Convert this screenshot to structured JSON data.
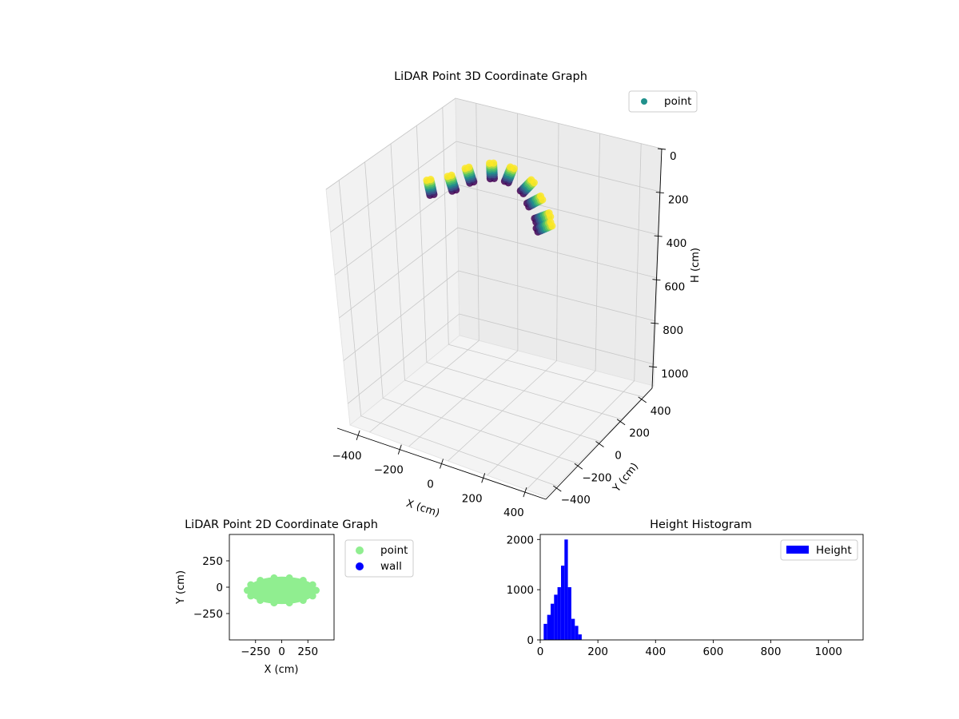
{
  "chart_data": [
    {
      "type": "scatter",
      "title": "LiDAR Point 3D Coordinate Graph",
      "xlabel": "X (cm)",
      "ylabel": "Y (cm)",
      "zlabel": "H (cm)",
      "xlim": [
        -500,
        500
      ],
      "ylim": [
        -500,
        500
      ],
      "zlim": [
        1100,
        0
      ],
      "xticks": [
        "−400",
        "−200",
        "0",
        "200",
        "400"
      ],
      "yticks": [
        "−400",
        "−200",
        "0",
        "200",
        "400"
      ],
      "zticks": [
        "0",
        "200",
        "400",
        "600",
        "800",
        "1000"
      ],
      "xtick_values": [
        -400,
        -200,
        0,
        200,
        400
      ],
      "ytick_values": [
        -400,
        -200,
        0,
        200,
        400
      ],
      "ztick_values": [
        0,
        200,
        400,
        600,
        800,
        1000
      ],
      "grid": true,
      "legend": {
        "placement": "upper-right",
        "entries": [
          {
            "label": "point",
            "color": "#21918c"
          }
        ]
      },
      "colormap": "viridis",
      "series": [
        {
          "name": "point",
          "shape": "curved arc (dome) of points",
          "x_range": [
            -300,
            300
          ],
          "y_range": [
            -150,
            120
          ],
          "h_range": [
            20,
            150
          ]
        }
      ]
    },
    {
      "type": "scatter",
      "title": "LiDAR Point 2D Coordinate Graph",
      "xlabel": "X (cm)",
      "ylabel": "Y (cm)",
      "xlim": [
        -500,
        500
      ],
      "ylim": [
        -500,
        500
      ],
      "xticks": [
        "−250",
        "0",
        "250"
      ],
      "yticks": [
        "250",
        "0",
        "−250"
      ],
      "xtick_values": [
        -250,
        0,
        250
      ],
      "ytick_values": [
        250,
        0,
        -250
      ],
      "grid": false,
      "legend": {
        "placement": "outside-right",
        "entries": [
          {
            "label": "point",
            "color": "#90ee90"
          },
          {
            "label": "wall",
            "color": "#0000ff"
          }
        ]
      },
      "series": [
        {
          "name": "point",
          "color": "#90ee90",
          "x_range": [
            -330,
            330
          ],
          "y_range": [
            -160,
            100
          ]
        },
        {
          "name": "wall",
          "color": "#0000ff",
          "count": 0
        }
      ]
    },
    {
      "type": "bar",
      "title": "Height Histogram",
      "xlabel": "",
      "ylabel": "",
      "xlim": [
        0,
        1120
      ],
      "ylim": [
        0,
        2100
      ],
      "xticks": [
        "0",
        "200",
        "400",
        "600",
        "800",
        "1000"
      ],
      "yticks": [
        "0",
        "1000",
        "2000"
      ],
      "xtick_values": [
        0,
        200,
        400,
        600,
        800,
        1000
      ],
      "ytick_values": [
        0,
        1000,
        2000
      ],
      "grid": false,
      "legend": {
        "placement": "upper-right",
        "entries": [
          {
            "label": "Height",
            "color": "#0000ff"
          }
        ]
      },
      "series": [
        {
          "name": "Height",
          "color": "#0000ff",
          "bin_width": 12,
          "bin_starts": [
            12,
            24,
            36,
            48,
            60,
            72,
            84,
            96,
            108,
            120,
            132
          ],
          "counts": [
            320,
            500,
            720,
            900,
            1050,
            1480,
            2000,
            1050,
            420,
            280,
            110
          ]
        }
      ]
    }
  ]
}
